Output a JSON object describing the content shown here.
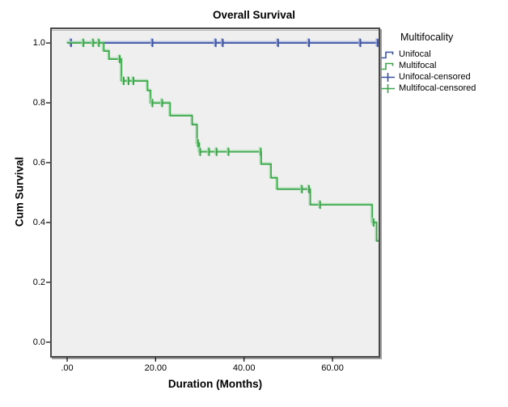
{
  "figure": {
    "title": "Overall Survival"
  },
  "legend": {
    "title": "Multifocality",
    "items": [
      {
        "label": "Unifocal",
        "series": "unifocal",
        "marker": "step-line"
      },
      {
        "label": "Multifocal",
        "series": "multifocal",
        "marker": "step-line"
      },
      {
        "label": "Unifocal-censored",
        "series": "unifocal",
        "marker": "censored-plus"
      },
      {
        "label": "Multifocal-censored",
        "series": "multifocal",
        "marker": "censored-plus"
      }
    ]
  },
  "colors": {
    "unifocal": "#3A53A5",
    "unifocal_halo": "#A7B2DC",
    "multifocal": "#3BA74A",
    "multifocal_halo": "#A8DCAF",
    "frame": "#4A4A4A",
    "frame_shadow": "#9E9E9E",
    "plot_bg": "#EFEFEF",
    "tick": "#000000"
  },
  "chart_data": {
    "type": "line",
    "subtype": "kaplan-meier-step-survival",
    "title": "Overall Survival",
    "xlabel": "Duration (Months)",
    "ylabel": "Cum Survival",
    "grid": false,
    "legend_position": "right",
    "legend_title": "Multifocality",
    "xlim": [
      -3.66,
      70.6
    ],
    "ylim": [
      -0.049,
      1.049
    ],
    "x_ticks": {
      "values": [
        0,
        20,
        40,
        60
      ],
      "labels": [
        ".00",
        "20.00",
        "40.00",
        "60.00"
      ]
    },
    "y_ticks": {
      "values": [
        0,
        0.2,
        0.4,
        0.6,
        0.8,
        1.0
      ],
      "labels": [
        "0.0",
        "0.2",
        "0.4",
        "0.6",
        "0.8",
        "1.0"
      ]
    },
    "series": [
      {
        "name": "Unifocal",
        "color_key": "unifocal",
        "steps": [
          [
            0,
            1.0
          ],
          [
            70.6,
            1.0
          ]
        ],
        "censored": [
          [
            0.9,
            1.0
          ],
          [
            19.3,
            1.0
          ],
          [
            33.6,
            1.0
          ],
          [
            35.2,
            1.0
          ],
          [
            47.7,
            1.0
          ],
          [
            54.7,
            1.0
          ],
          [
            66.3,
            1.0
          ],
          [
            70.2,
            1.0
          ]
        ]
      },
      {
        "name": "Multifocal",
        "color_key": "multifocal",
        "steps": [
          [
            0,
            1.0
          ],
          [
            8.3,
            1.0
          ],
          [
            8.3,
            0.973
          ],
          [
            9.5,
            0.973
          ],
          [
            9.5,
            0.946
          ],
          [
            12.3,
            0.946
          ],
          [
            12.3,
            0.873
          ],
          [
            18.2,
            0.873
          ],
          [
            18.2,
            0.841
          ],
          [
            18.9,
            0.841
          ],
          [
            18.9,
            0.799
          ],
          [
            23.3,
            0.799
          ],
          [
            23.3,
            0.757
          ],
          [
            28.3,
            0.757
          ],
          [
            28.3,
            0.727
          ],
          [
            29.4,
            0.727
          ],
          [
            29.4,
            0.665
          ],
          [
            29.9,
            0.665
          ],
          [
            29.9,
            0.636
          ],
          [
            43.9,
            0.636
          ],
          [
            43.9,
            0.595
          ],
          [
            46.1,
            0.595
          ],
          [
            46.1,
            0.549
          ],
          [
            47.5,
            0.549
          ],
          [
            47.5,
            0.511
          ],
          [
            55.0,
            0.511
          ],
          [
            55.0,
            0.459
          ],
          [
            69.0,
            0.459
          ],
          [
            69.0,
            0.4
          ],
          [
            70.0,
            0.4
          ],
          [
            70.0,
            0.338
          ],
          [
            70.6,
            0.338
          ]
        ],
        "censored": [
          [
            3.7,
            1.0
          ],
          [
            5.9,
            1.0
          ],
          [
            7.2,
            1.0
          ],
          [
            11.9,
            0.946
          ],
          [
            12.8,
            0.873
          ],
          [
            13.9,
            0.873
          ],
          [
            15.0,
            0.873
          ],
          [
            19.3,
            0.799
          ],
          [
            21.5,
            0.799
          ],
          [
            29.6,
            0.665
          ],
          [
            30.1,
            0.636
          ],
          [
            32.1,
            0.636
          ],
          [
            33.8,
            0.636
          ],
          [
            36.5,
            0.636
          ],
          [
            43.8,
            0.636
          ],
          [
            53.1,
            0.511
          ],
          [
            54.7,
            0.511
          ],
          [
            57.2,
            0.459
          ],
          [
            69.3,
            0.4
          ]
        ]
      }
    ]
  }
}
